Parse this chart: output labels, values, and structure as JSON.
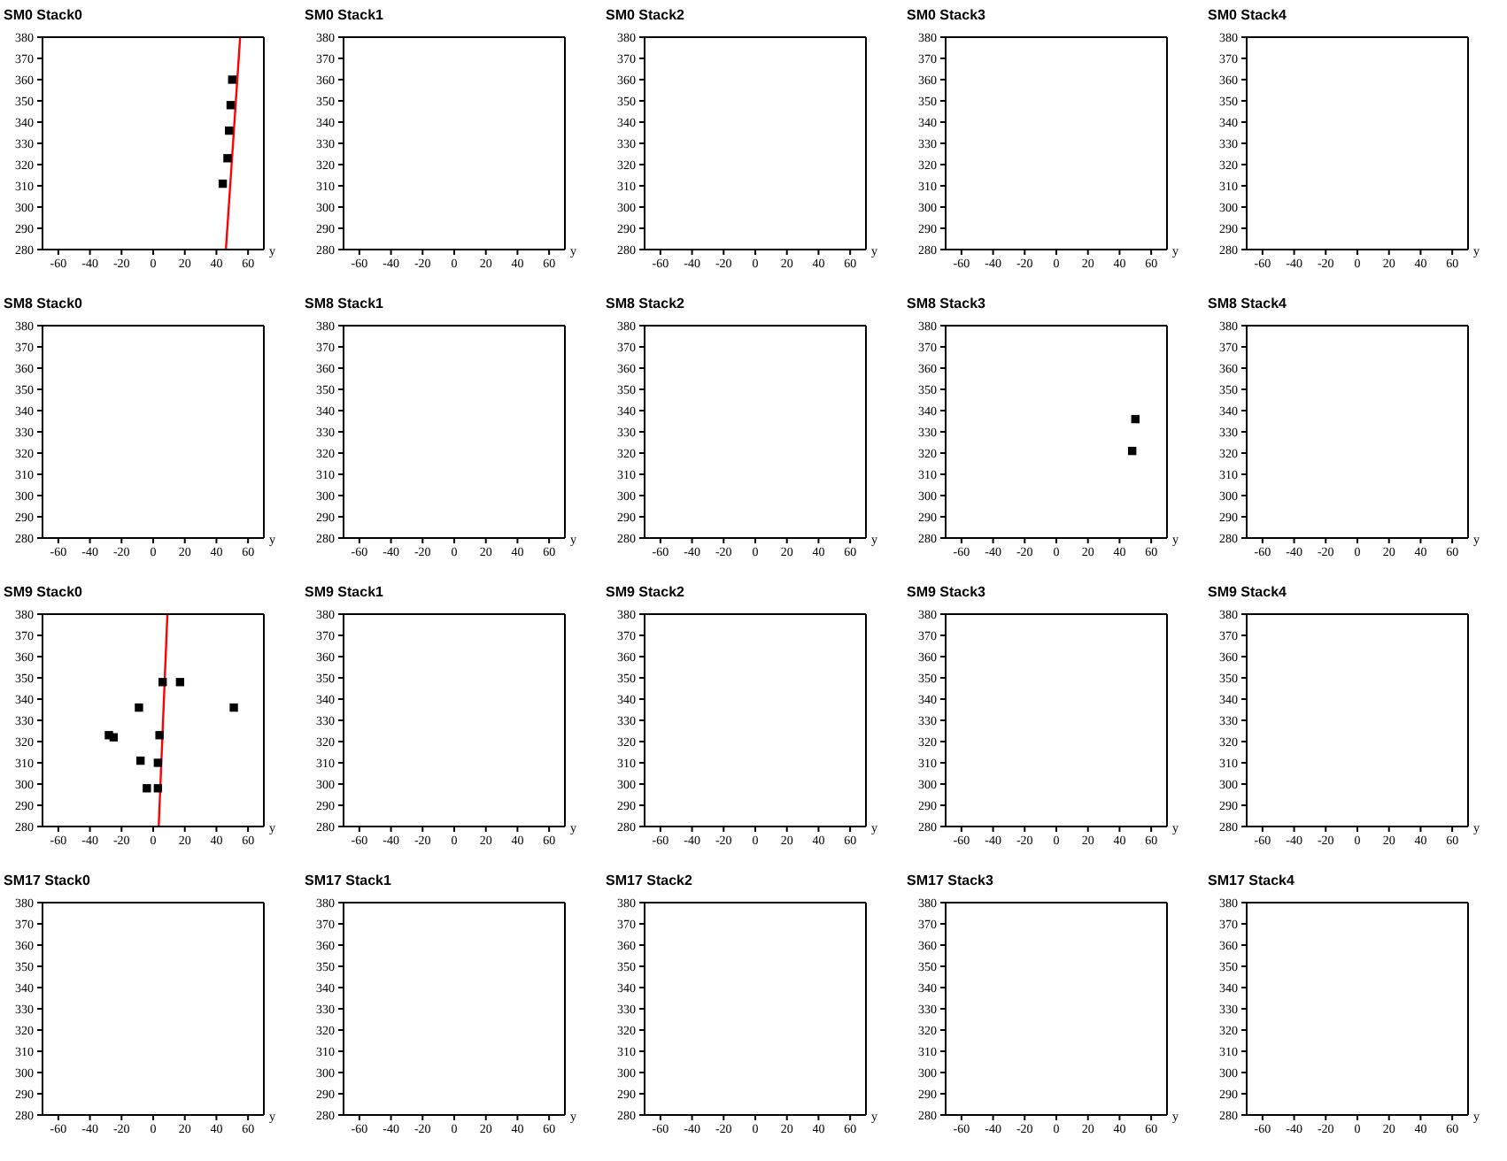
{
  "chart_data": [
    {
      "type": "scatter",
      "title": "SM0 Stack0",
      "xlabel": "y",
      "xlim": [
        -70,
        70
      ],
      "xticks": [
        -60,
        -40,
        -20,
        0,
        20,
        40,
        60
      ],
      "ylim": [
        280,
        380
      ],
      "yticks": [
        280,
        290,
        300,
        310,
        320,
        330,
        340,
        350,
        360,
        370,
        380
      ],
      "grid": false,
      "legend": false,
      "series": [
        {
          "type": "scatter",
          "marker": "square",
          "color": "#000000",
          "x": [
            50,
            49,
            48,
            47,
            44
          ],
          "values": [
            360,
            348,
            336,
            323,
            311
          ]
        },
        {
          "type": "line",
          "color": "#ff0000",
          "x": [
            46,
            55
          ],
          "values": [
            280,
            380
          ]
        }
      ]
    },
    {
      "type": "scatter",
      "title": "SM0 Stack1",
      "xlabel": "y",
      "xlim": [
        -70,
        70
      ],
      "xticks": [
        -60,
        -40,
        -20,
        0,
        20,
        40,
        60
      ],
      "ylim": [
        280,
        380
      ],
      "yticks": [
        280,
        290,
        300,
        310,
        320,
        330,
        340,
        350,
        360,
        370,
        380
      ],
      "grid": false,
      "legend": false
    },
    {
      "type": "scatter",
      "title": "SM0 Stack2",
      "xlabel": "y",
      "xlim": [
        -70,
        70
      ],
      "xticks": [
        -60,
        -40,
        -20,
        0,
        20,
        40,
        60
      ],
      "ylim": [
        280,
        380
      ],
      "yticks": [
        280,
        290,
        300,
        310,
        320,
        330,
        340,
        350,
        360,
        370,
        380
      ],
      "grid": false,
      "legend": false
    },
    {
      "type": "scatter",
      "title": "SM0 Stack3",
      "xlabel": "y",
      "xlim": [
        -70,
        70
      ],
      "xticks": [
        -60,
        -40,
        -20,
        0,
        20,
        40,
        60
      ],
      "ylim": [
        280,
        380
      ],
      "yticks": [
        280,
        290,
        300,
        310,
        320,
        330,
        340,
        350,
        360,
        370,
        380
      ],
      "grid": false,
      "legend": false
    },
    {
      "type": "scatter",
      "title": "SM0 Stack4",
      "xlabel": "y",
      "xlim": [
        -70,
        70
      ],
      "xticks": [
        -60,
        -40,
        -20,
        0,
        20,
        40,
        60
      ],
      "ylim": [
        280,
        380
      ],
      "yticks": [
        280,
        290,
        300,
        310,
        320,
        330,
        340,
        350,
        360,
        370,
        380
      ],
      "grid": false,
      "legend": false
    },
    {
      "type": "scatter",
      "title": "SM8 Stack0",
      "xlabel": "y",
      "xlim": [
        -70,
        70
      ],
      "xticks": [
        -60,
        -40,
        -20,
        0,
        20,
        40,
        60
      ],
      "ylim": [
        280,
        380
      ],
      "yticks": [
        280,
        290,
        300,
        310,
        320,
        330,
        340,
        350,
        360,
        370,
        380
      ],
      "grid": false,
      "legend": false
    },
    {
      "type": "scatter",
      "title": "SM8 Stack1",
      "xlabel": "y",
      "xlim": [
        -70,
        70
      ],
      "xticks": [
        -60,
        -40,
        -20,
        0,
        20,
        40,
        60
      ],
      "ylim": [
        280,
        380
      ],
      "yticks": [
        280,
        290,
        300,
        310,
        320,
        330,
        340,
        350,
        360,
        370,
        380
      ],
      "grid": false,
      "legend": false
    },
    {
      "type": "scatter",
      "title": "SM8 Stack2",
      "xlabel": "y",
      "xlim": [
        -70,
        70
      ],
      "xticks": [
        -60,
        -40,
        -20,
        0,
        20,
        40,
        60
      ],
      "ylim": [
        280,
        380
      ],
      "yticks": [
        280,
        290,
        300,
        310,
        320,
        330,
        340,
        350,
        360,
        370,
        380
      ],
      "grid": false,
      "legend": false
    },
    {
      "type": "scatter",
      "title": "SM8 Stack3",
      "xlabel": "y",
      "xlim": [
        -70,
        70
      ],
      "xticks": [
        -60,
        -40,
        -20,
        0,
        20,
        40,
        60
      ],
      "ylim": [
        280,
        380
      ],
      "yticks": [
        280,
        290,
        300,
        310,
        320,
        330,
        340,
        350,
        360,
        370,
        380
      ],
      "grid": false,
      "legend": false,
      "series": [
        {
          "type": "scatter",
          "marker": "square",
          "color": "#000000",
          "x": [
            50,
            48
          ],
          "values": [
            336,
            321
          ]
        }
      ]
    },
    {
      "type": "scatter",
      "title": "SM8 Stack4",
      "xlabel": "y",
      "xlim": [
        -70,
        70
      ],
      "xticks": [
        -60,
        -40,
        -20,
        0,
        20,
        40,
        60
      ],
      "ylim": [
        280,
        380
      ],
      "yticks": [
        280,
        290,
        300,
        310,
        320,
        330,
        340,
        350,
        360,
        370,
        380
      ],
      "grid": false,
      "legend": false
    },
    {
      "type": "scatter",
      "title": "SM9 Stack0",
      "xlabel": "y",
      "xlim": [
        -70,
        70
      ],
      "xticks": [
        -60,
        -40,
        -20,
        0,
        20,
        40,
        60
      ],
      "ylim": [
        280,
        380
      ],
      "yticks": [
        280,
        290,
        300,
        310,
        320,
        330,
        340,
        350,
        360,
        370,
        380
      ],
      "grid": false,
      "legend": false,
      "series": [
        {
          "type": "scatter",
          "marker": "square",
          "color": "#000000",
          "x": [
            6,
            17,
            -9,
            51,
            -28,
            -25,
            4,
            -8,
            3,
            -4,
            3
          ],
          "values": [
            348,
            348,
            336,
            336,
            323,
            322,
            323,
            311,
            310,
            298,
            298
          ]
        },
        {
          "type": "line",
          "color": "#ff0000",
          "x": [
            3.5,
            9
          ],
          "values": [
            280,
            380
          ]
        }
      ]
    },
    {
      "type": "scatter",
      "title": "SM9 Stack1",
      "xlabel": "y",
      "xlim": [
        -70,
        70
      ],
      "xticks": [
        -60,
        -40,
        -20,
        0,
        20,
        40,
        60
      ],
      "ylim": [
        280,
        380
      ],
      "yticks": [
        280,
        290,
        300,
        310,
        320,
        330,
        340,
        350,
        360,
        370,
        380
      ],
      "grid": false,
      "legend": false
    },
    {
      "type": "scatter",
      "title": "SM9 Stack2",
      "xlabel": "y",
      "xlim": [
        -70,
        70
      ],
      "xticks": [
        -60,
        -40,
        -20,
        0,
        20,
        40,
        60
      ],
      "ylim": [
        280,
        380
      ],
      "yticks": [
        280,
        290,
        300,
        310,
        320,
        330,
        340,
        350,
        360,
        370,
        380
      ],
      "grid": false,
      "legend": false
    },
    {
      "type": "scatter",
      "title": "SM9 Stack3",
      "xlabel": "y",
      "xlim": [
        -70,
        70
      ],
      "xticks": [
        -60,
        -40,
        -20,
        0,
        20,
        40,
        60
      ],
      "ylim": [
        280,
        380
      ],
      "yticks": [
        280,
        290,
        300,
        310,
        320,
        330,
        340,
        350,
        360,
        370,
        380
      ],
      "grid": false,
      "legend": false
    },
    {
      "type": "scatter",
      "title": "SM9 Stack4",
      "xlabel": "y",
      "xlim": [
        -70,
        70
      ],
      "xticks": [
        -60,
        -40,
        -20,
        0,
        20,
        40,
        60
      ],
      "ylim": [
        280,
        380
      ],
      "yticks": [
        280,
        290,
        300,
        310,
        320,
        330,
        340,
        350,
        360,
        370,
        380
      ],
      "grid": false,
      "legend": false
    },
    {
      "type": "scatter",
      "title": "SM17 Stack0",
      "xlabel": "y",
      "xlim": [
        -70,
        70
      ],
      "xticks": [
        -60,
        -40,
        -20,
        0,
        20,
        40,
        60
      ],
      "ylim": [
        280,
        380
      ],
      "yticks": [
        280,
        290,
        300,
        310,
        320,
        330,
        340,
        350,
        360,
        370,
        380
      ],
      "grid": false,
      "legend": false
    },
    {
      "type": "scatter",
      "title": "SM17 Stack1",
      "xlabel": "y",
      "xlim": [
        -70,
        70
      ],
      "xticks": [
        -60,
        -40,
        -20,
        0,
        20,
        40,
        60
      ],
      "ylim": [
        280,
        380
      ],
      "yticks": [
        280,
        290,
        300,
        310,
        320,
        330,
        340,
        350,
        360,
        370,
        380
      ],
      "grid": false,
      "legend": false
    },
    {
      "type": "scatter",
      "title": "SM17 Stack2",
      "xlabel": "y",
      "xlim": [
        -70,
        70
      ],
      "xticks": [
        -60,
        -40,
        -20,
        0,
        20,
        40,
        60
      ],
      "ylim": [
        280,
        380
      ],
      "yticks": [
        280,
        290,
        300,
        310,
        320,
        330,
        340,
        350,
        360,
        370,
        380
      ],
      "grid": false,
      "legend": false
    },
    {
      "type": "scatter",
      "title": "SM17 Stack3",
      "xlabel": "y",
      "xlim": [
        -70,
        70
      ],
      "xticks": [
        -60,
        -40,
        -20,
        0,
        20,
        40,
        60
      ],
      "ylim": [
        280,
        380
      ],
      "yticks": [
        280,
        290,
        300,
        310,
        320,
        330,
        340,
        350,
        360,
        370,
        380
      ],
      "grid": false,
      "legend": false
    },
    {
      "type": "scatter",
      "title": "SM17 Stack4",
      "xlabel": "y",
      "xlim": [
        -70,
        70
      ],
      "xticks": [
        -60,
        -40,
        -20,
        0,
        20,
        40,
        60
      ],
      "ylim": [
        280,
        380
      ],
      "yticks": [
        280,
        290,
        300,
        310,
        320,
        330,
        340,
        350,
        360,
        370,
        380
      ],
      "grid": false,
      "legend": false
    }
  ]
}
